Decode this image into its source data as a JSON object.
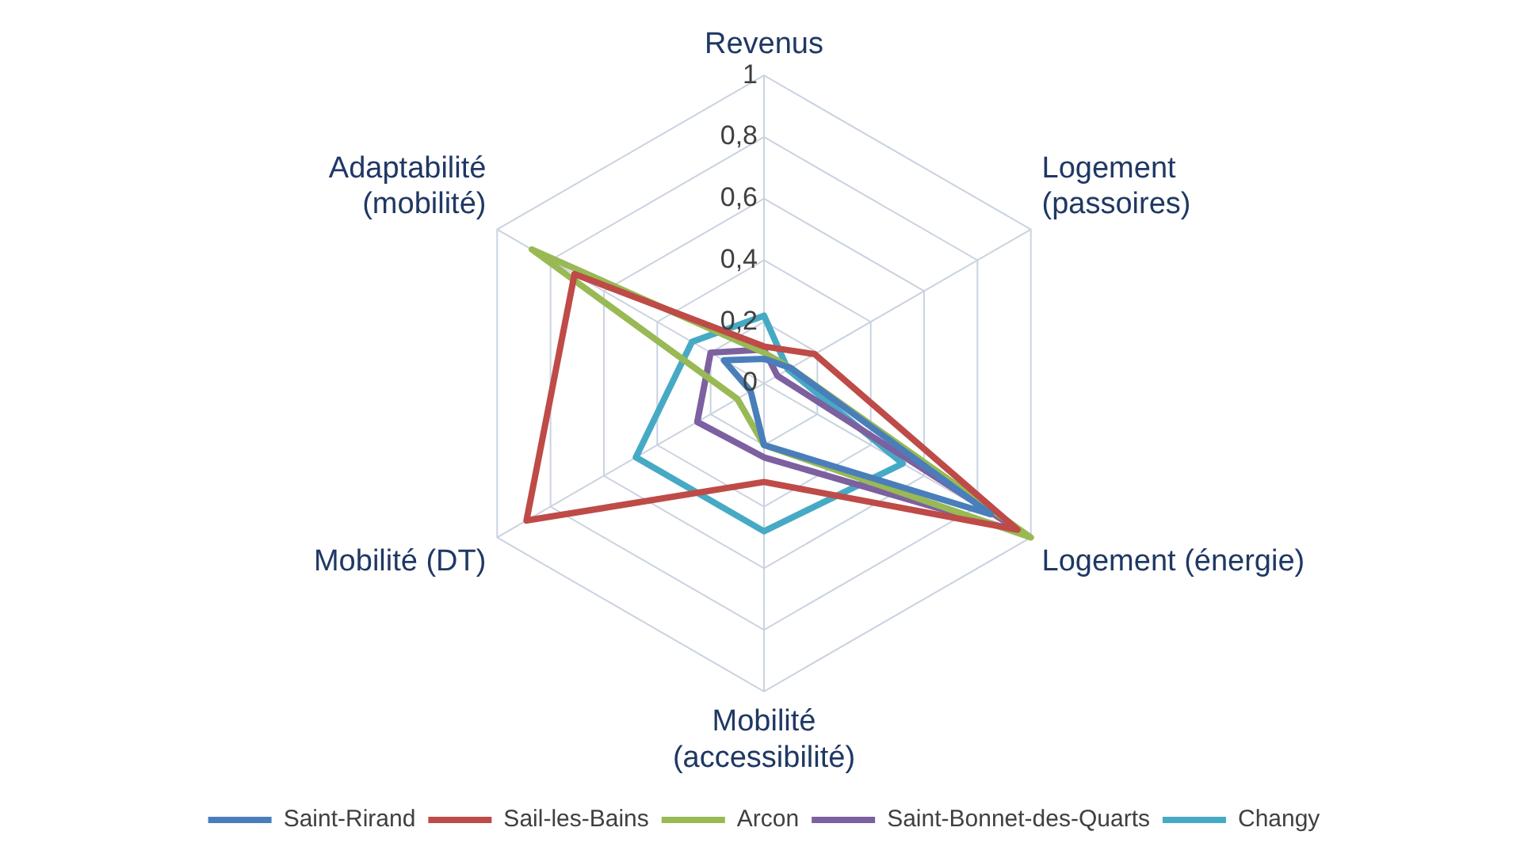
{
  "chart_data": {
    "type": "radar",
    "categories": [
      "Revenus",
      "Logement\n(passoires)",
      "Logement (énergie)",
      "Mobilité\n(accessibilité)",
      "Mobilité (DT)",
      "Adaptabilité\n(mobilité)"
    ],
    "ylim": [
      0,
      1
    ],
    "yticks": [
      0,
      {
        "value": 0.2,
        "label": "0,2"
      },
      {
        "value": 0.4,
        "label": "0,4"
      },
      {
        "value": 0.6,
        "label": "0,6"
      },
      {
        "value": 0.8,
        "label": "0,8"
      },
      1
    ],
    "grid": true,
    "legend": "bottom",
    "marker": "none",
    "line_style": "solid",
    "series": [
      {
        "name": "Saint-Rirand",
        "color": "#4a7ebb",
        "values": [
          0.08,
          0.1,
          0.85,
          0.2,
          0.05,
          0.15
        ]
      },
      {
        "name": "Sail-les-Bains",
        "color": "#be4b48",
        "values": [
          0.12,
          0.19,
          0.95,
          0.32,
          0.89,
          0.71
        ]
      },
      {
        "name": "Arcon",
        "color": "#98b954",
        "values": [
          0.1,
          0.1,
          1,
          0.2,
          0.1,
          0.87
        ]
      },
      {
        "name": "Saint-Bonnet-des-Quarts",
        "color": "#7d60a0",
        "values": [
          0.11,
          0.05,
          0.97,
          0.24,
          0.25,
          0.2
        ]
      },
      {
        "name": "Changy",
        "color": "#46aac5",
        "values": [
          0.22,
          0.09,
          0.52,
          0.48,
          0.48,
          0.27
        ]
      }
    ]
  }
}
